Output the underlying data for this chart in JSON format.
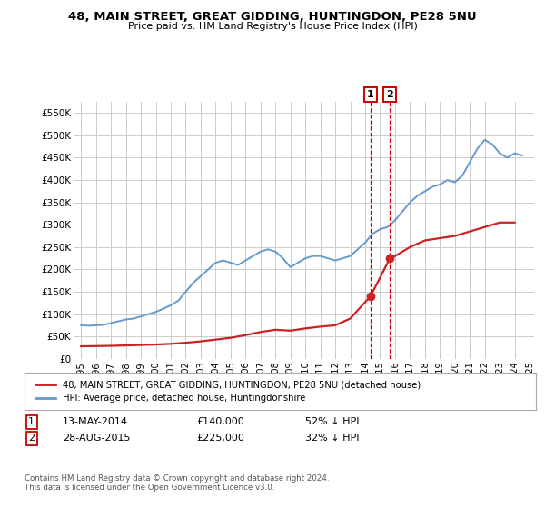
{
  "title": "48, MAIN STREET, GREAT GIDDING, HUNTINGDON, PE28 5NU",
  "subtitle": "Price paid vs. HM Land Registry's House Price Index (HPI)",
  "legend_line1": "48, MAIN STREET, GREAT GIDDING, HUNTINGDON, PE28 5NU (detached house)",
  "legend_line2": "HPI: Average price, detached house, Huntingdonshire",
  "footer": "Contains HM Land Registry data © Crown copyright and database right 2024.\nThis data is licensed under the Open Government Licence v3.0.",
  "transaction1_date": "13-MAY-2014",
  "transaction1_price": "£140,000",
  "transaction1_hpi": "52% ↓ HPI",
  "transaction2_date": "28-AUG-2015",
  "transaction2_price": "£225,000",
  "transaction2_hpi": "32% ↓ HPI",
  "hpi_color": "#6699cc",
  "price_color": "#cc2222",
  "vline_color": "#cc0000",
  "background_color": "#ffffff",
  "grid_color": "#cccccc",
  "ylim": [
    0,
    575000
  ],
  "yticks": [
    0,
    50000,
    100000,
    150000,
    200000,
    250000,
    300000,
    350000,
    400000,
    450000,
    500000,
    550000
  ],
  "ytick_labels": [
    "£0",
    "£50K",
    "£100K",
    "£150K",
    "£200K",
    "£250K",
    "£300K",
    "£350K",
    "£400K",
    "£450K",
    "£500K",
    "£550K"
  ],
  "transaction1_x": 2014.36,
  "transaction1_y": 140000,
  "transaction2_x": 2015.66,
  "transaction2_y": 225000,
  "hpi_years": [
    1995.0,
    1995.5,
    1996.0,
    1996.5,
    1997.0,
    1997.5,
    1998.0,
    1998.5,
    1999.0,
    1999.5,
    2000.0,
    2000.5,
    2001.0,
    2001.5,
    2002.0,
    2002.5,
    2003.0,
    2003.5,
    2004.0,
    2004.5,
    2005.0,
    2005.5,
    2006.0,
    2006.5,
    2007.0,
    2007.5,
    2008.0,
    2008.5,
    2009.0,
    2009.5,
    2010.0,
    2010.5,
    2011.0,
    2011.5,
    2012.0,
    2012.5,
    2013.0,
    2013.5,
    2014.0,
    2014.5,
    2015.0,
    2015.5,
    2016.0,
    2016.5,
    2017.0,
    2017.5,
    2018.0,
    2018.5,
    2019.0,
    2019.5,
    2020.0,
    2020.5,
    2021.0,
    2021.5,
    2022.0,
    2022.5,
    2023.0,
    2023.5,
    2024.0,
    2024.5
  ],
  "hpi_values": [
    75000,
    74000,
    75000,
    76000,
    80000,
    84000,
    88000,
    90000,
    95000,
    100000,
    105000,
    112000,
    120000,
    130000,
    150000,
    170000,
    185000,
    200000,
    215000,
    220000,
    215000,
    210000,
    220000,
    230000,
    240000,
    245000,
    240000,
    225000,
    205000,
    215000,
    225000,
    230000,
    230000,
    225000,
    220000,
    225000,
    230000,
    245000,
    260000,
    280000,
    290000,
    295000,
    310000,
    330000,
    350000,
    365000,
    375000,
    385000,
    390000,
    400000,
    395000,
    410000,
    440000,
    470000,
    490000,
    480000,
    460000,
    450000,
    460000,
    455000
  ],
  "price_years": [
    1995.0,
    1996.0,
    1997.0,
    1998.0,
    1999.0,
    2000.0,
    2001.0,
    2002.0,
    2003.0,
    2004.0,
    2005.0,
    2006.0,
    2007.0,
    2008.0,
    2009.0,
    2010.0,
    2011.0,
    2012.0,
    2013.0,
    2014.36,
    2015.66,
    2016.0,
    2017.0,
    2018.0,
    2019.0,
    2020.0,
    2021.0,
    2022.0,
    2023.0,
    2024.0
  ],
  "price_values": [
    28000,
    28500,
    29000,
    30000,
    31000,
    32000,
    33500,
    36000,
    39000,
    43000,
    47000,
    53000,
    60000,
    65000,
    63000,
    68000,
    72000,
    75000,
    90000,
    140000,
    225000,
    230000,
    250000,
    265000,
    270000,
    275000,
    285000,
    295000,
    305000,
    305000
  ],
  "xtick_years": [
    1995,
    1996,
    1997,
    1998,
    1999,
    2000,
    2001,
    2002,
    2003,
    2004,
    2005,
    2006,
    2007,
    2008,
    2009,
    2010,
    2011,
    2012,
    2013,
    2014,
    2015,
    2016,
    2017,
    2018,
    2019,
    2020,
    2021,
    2022,
    2023,
    2024,
    2025
  ]
}
